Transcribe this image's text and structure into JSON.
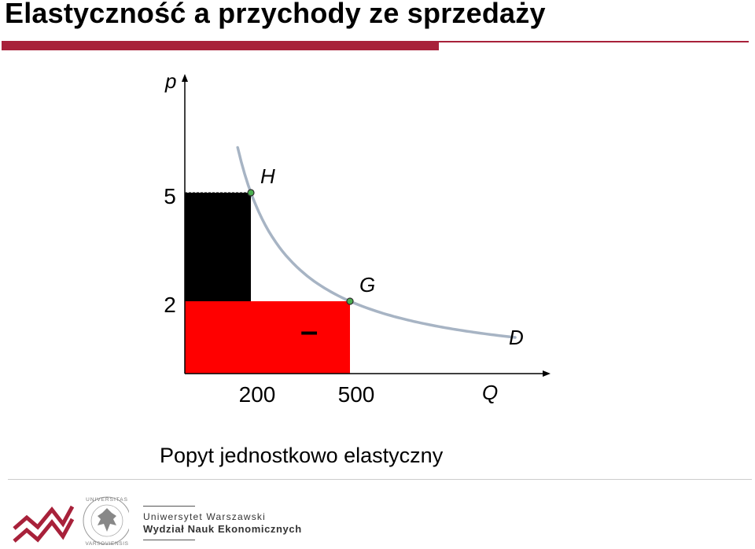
{
  "slide": {
    "title": "Elastyczność a przychody ze sprzedaży",
    "caption": "Popyt jednostkowo elastyczny",
    "accent_color": "#a8213a"
  },
  "chart_data": {
    "type": "line",
    "title": "",
    "xlabel": "Q",
    "ylabel": "p",
    "series": [
      {
        "name": "D",
        "label": "D",
        "x": [
          160,
          200,
          500,
          1000
        ],
        "y": [
          6.25,
          5,
          2,
          1
        ],
        "color": "#a7b4c4"
      }
    ],
    "points": [
      {
        "label": "H",
        "x": 200,
        "y": 5
      },
      {
        "label": "G",
        "x": 500,
        "y": 2
      }
    ],
    "x_ticks": [
      200,
      500
    ],
    "y_ticks": [
      5,
      2
    ],
    "revenue_areas": [
      {
        "name": "lost revenue",
        "x0": 0,
        "x1": 200,
        "y0": 2,
        "y1": 5,
        "color": "#000000"
      },
      {
        "name": "revenue",
        "x0": 0,
        "x1": 500,
        "y0": 0,
        "y1": 2,
        "color": "#ff0000"
      }
    ],
    "minus_sign": "–",
    "grid": false
  },
  "footer": {
    "university_name": "Uniwersytet Warszawski",
    "faculty_name": "Wydział Nauk Ekonomicznych",
    "seal_text": "UNIVERSITAS VARSOVIENSIS",
    "logo": "wne-logo",
    "seal": "university-seal"
  }
}
